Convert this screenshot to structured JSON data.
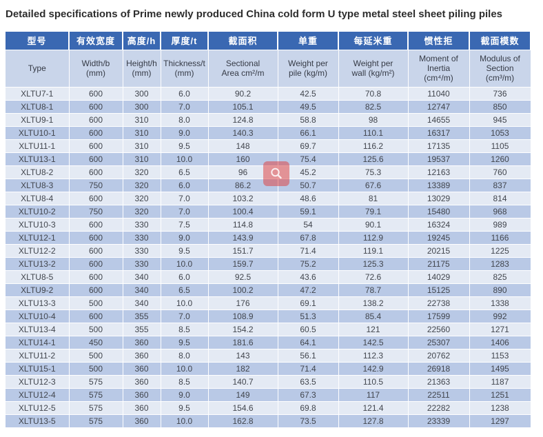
{
  "page": {
    "title": "Detailed specifications of Prime newly produced China cold form U type metal steel sheet piling piles"
  },
  "colors": {
    "header_bg": "#3a68b2",
    "subheader_bg": "#c9d5ea",
    "row_light": "#e4eaf4",
    "row_dark": "#b9c9e6",
    "header_text": "#ffffff",
    "cell_text": "#41454d",
    "watermark_red": "#e03a38"
  },
  "icons": {
    "watermark": "magnifier-icon"
  },
  "table": {
    "columns_cn": [
      "型号",
      "有效宽度",
      "高度/h",
      "厚度/t",
      "截面积",
      "单重",
      "每延米重",
      "惯性拒",
      "截面模数"
    ],
    "columns_en": [
      "Type",
      "Width/b\n(mm)",
      "Height/h\n(mm)",
      "Thickness/t\n(mm)",
      "Sectional\nArea cm²/m",
      "Weight per\npile (kg/m)",
      "Weight per\nwall (kg/m²)",
      "Moment of\nInertia\n(cm⁴/m)",
      "Modulus of\nSection\n(cm³/m)"
    ],
    "rows": [
      [
        "XLTU7-1",
        "600",
        "300",
        "6.0",
        "90.2",
        "42.5",
        "70.8",
        "11040",
        "736"
      ],
      [
        "XLTU8-1",
        "600",
        "300",
        "7.0",
        "105.1",
        "49.5",
        "82.5",
        "12747",
        "850"
      ],
      [
        "XLTU9-1",
        "600",
        "310",
        "8.0",
        "124.8",
        "58.8",
        "98",
        "14655",
        "945"
      ],
      [
        "XLTU10-1",
        "600",
        "310",
        "9.0",
        "140.3",
        "66.1",
        "110.1",
        "16317",
        "1053"
      ],
      [
        "XLTU11-1",
        "600",
        "310",
        "9.5",
        "148",
        "69.7",
        "116.2",
        "17135",
        "1105"
      ],
      [
        "XLTU13-1",
        "600",
        "310",
        "10.0",
        "160",
        "75.4",
        "125.6",
        "19537",
        "1260"
      ],
      [
        "XLTU8-2",
        "600",
        "320",
        "6.5",
        "96",
        "45.2",
        "75.3",
        "12163",
        "760"
      ],
      [
        "XLTU8-3",
        "750",
        "320",
        "6.0",
        "86.2",
        "50.7",
        "67.6",
        "13389",
        "837"
      ],
      [
        "XLTU8-4",
        "600",
        "320",
        "7.0",
        "103.2",
        "48.6",
        "81",
        "13029",
        "814"
      ],
      [
        "XLTU10-2",
        "750",
        "320",
        "7.0",
        "100.4",
        "59.1",
        "79.1",
        "15480",
        "968"
      ],
      [
        "XLTU10-3",
        "600",
        "330",
        "7.5",
        "114.8",
        "54",
        "90.1",
        "16324",
        "989"
      ],
      [
        "XLTU12-1",
        "600",
        "330",
        "9.0",
        "143.9",
        "67.8",
        "112.9",
        "19245",
        "1166"
      ],
      [
        "XLTU12-2",
        "600",
        "330",
        "9.5",
        "151.7",
        "71.4",
        "119.1",
        "20215",
        "1225"
      ],
      [
        "XLTU13-2",
        "600",
        "330",
        "10.0",
        "159.7",
        "75.2",
        "125.3",
        "21175",
        "1283"
      ],
      [
        "XLTU8-5",
        "600",
        "340",
        "6.0",
        "92.5",
        "43.6",
        "72.6",
        "14029",
        "825"
      ],
      [
        "XLTU9-2",
        "600",
        "340",
        "6.5",
        "100.2",
        "47.2",
        "78.7",
        "15125",
        "890"
      ],
      [
        "XLTU13-3",
        "500",
        "340",
        "10.0",
        "176",
        "69.1",
        "138.2",
        "22738",
        "1338"
      ],
      [
        "XLTU10-4",
        "600",
        "355",
        "7.0",
        "108.9",
        "51.3",
        "85.4",
        "17599",
        "992"
      ],
      [
        "XLTU13-4",
        "500",
        "355",
        "8.5",
        "154.2",
        "60.5",
        "121",
        "22560",
        "1271"
      ],
      [
        "XLTU14-1",
        "450",
        "360",
        "9.5",
        "181.6",
        "64.1",
        "142.5",
        "25307",
        "1406"
      ],
      [
        "XLTU11-2",
        "500",
        "360",
        "8.0",
        "143",
        "56.1",
        "112.3",
        "20762",
        "1153"
      ],
      [
        "XLTU15-1",
        "500",
        "360",
        "10.0",
        "182",
        "71.4",
        "142.9",
        "26918",
        "1495"
      ],
      [
        "XLTU12-3",
        "575",
        "360",
        "8.5",
        "140.7",
        "63.5",
        "110.5",
        "21363",
        "1187"
      ],
      [
        "XLTU12-4",
        "575",
        "360",
        "9.0",
        "149",
        "67.3",
        "117",
        "22511",
        "1251"
      ],
      [
        "XLTU12-5",
        "575",
        "360",
        "9.5",
        "154.6",
        "69.8",
        "121.4",
        "22282",
        "1238"
      ],
      [
        "XLTU13-5",
        "575",
        "360",
        "10.0",
        "162.8",
        "73.5",
        "127.8",
        "23339",
        "1297"
      ]
    ]
  }
}
